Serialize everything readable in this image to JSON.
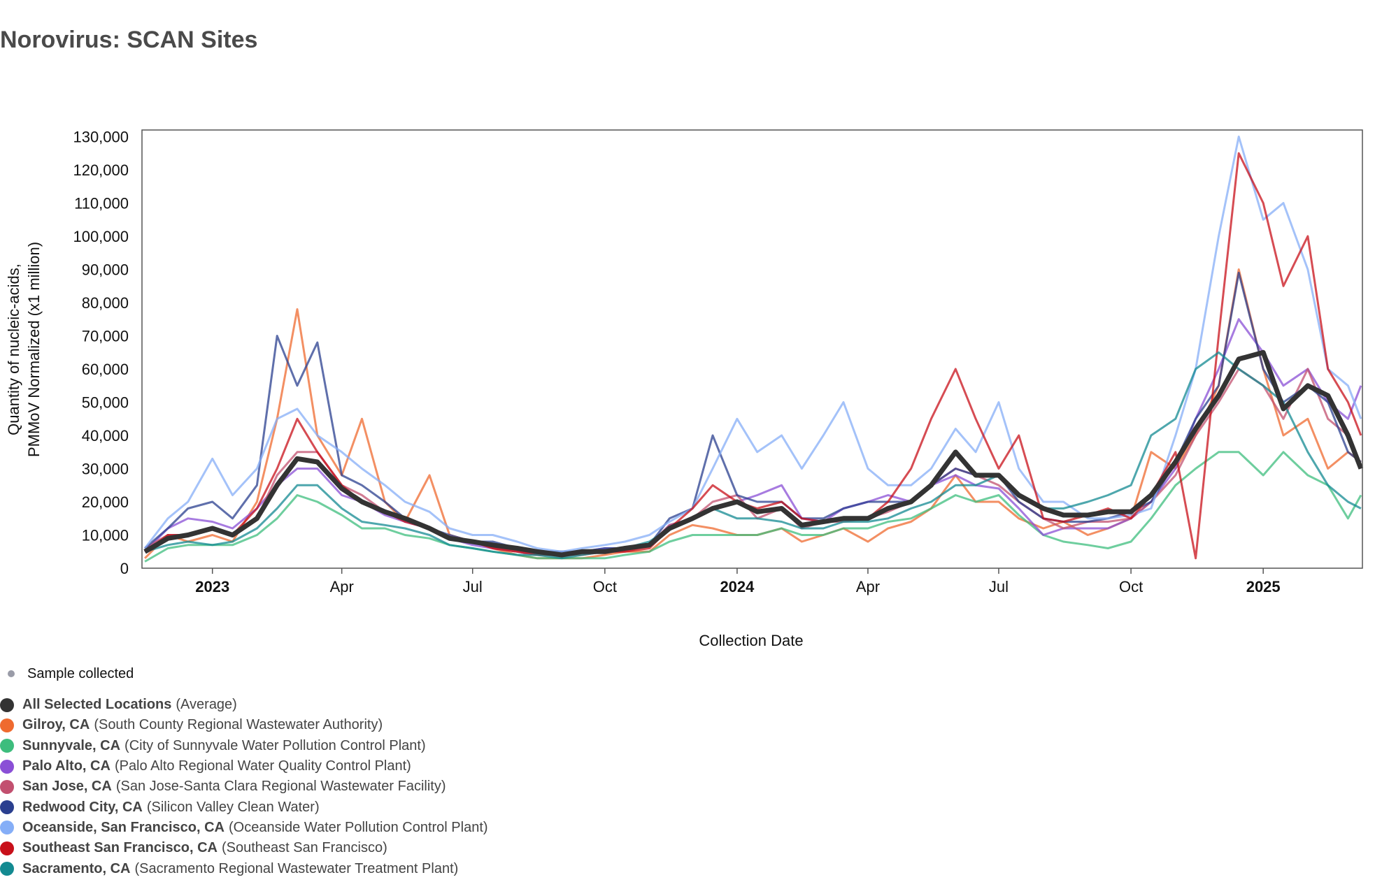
{
  "title": "Norovirus: SCAN Sites",
  "legend": {
    "sample_label": "Sample collected",
    "items": [
      {
        "name": "All Selected Locations",
        "detail": "(Average)",
        "color": "#333333"
      },
      {
        "name": "Gilroy, CA",
        "detail": "(South County Regional Wastewater Authority)",
        "color": "#ef6a2f"
      },
      {
        "name": "Sunnyvale, CA",
        "detail": "(City of Sunnyvale Water Pollution Control Plant)",
        "color": "#3dbd7d"
      },
      {
        "name": "Palo Alto, CA",
        "detail": "(Palo Alto Regional Water Quality Control Plant)",
        "color": "#8a4fd6"
      },
      {
        "name": "San Jose, CA",
        "detail": "(San Jose-Santa Clara Regional Wastewater Facility)",
        "color": "#c2506f"
      },
      {
        "name": "Redwood City, CA",
        "detail": "(Silicon Valley Clean Water)",
        "color": "#2a3f8f"
      },
      {
        "name": "Oceanside, San Francisco, CA",
        "detail": "(Oceanside Water Pollution Control Plant)",
        "color": "#85aef7"
      },
      {
        "name": "Southeast San Francisco, CA",
        "detail": "(Southeast San Francisco)",
        "color": "#c8101a"
      },
      {
        "name": "Sacramento, CA",
        "detail": "(Sacramento Regional Wastewater Treatment Plant)",
        "color": "#138a91"
      }
    ]
  },
  "chart_data": {
    "type": "line",
    "title": "Norovirus: SCAN Sites",
    "xlabel": "Collection Date",
    "ylabel": [
      "Quantity of nucleic-acids,",
      "PMMoV Normalized (x1 million)"
    ],
    "xlim": [
      "2022-11-13",
      "2025-03-11"
    ],
    "ylim": [
      0,
      132000
    ],
    "yticks": [
      0,
      10000,
      20000,
      30000,
      40000,
      50000,
      60000,
      70000,
      80000,
      90000,
      100000,
      110000,
      120000,
      130000
    ],
    "ytick_labels": [
      "0",
      "10,000",
      "20,000",
      "30,000",
      "40,000",
      "50,000",
      "60,000",
      "70,000",
      "80,000",
      "90,000",
      "100,000",
      "110,000",
      "120,000",
      "130,000"
    ],
    "xticks": [
      {
        "date": "2023-01-01",
        "label": "2023",
        "bold": true
      },
      {
        "date": "2023-04-01",
        "label": "Apr"
      },
      {
        "date": "2023-07-01",
        "label": "Jul"
      },
      {
        "date": "2023-10-01",
        "label": "Oct"
      },
      {
        "date": "2024-01-01",
        "label": "2024",
        "bold": true
      },
      {
        "date": "2024-04-01",
        "label": "Apr"
      },
      {
        "date": "2024-07-01",
        "label": "Jul"
      },
      {
        "date": "2024-10-01",
        "label": "Oct"
      },
      {
        "date": "2025-01-01",
        "label": "2025",
        "bold": true
      }
    ],
    "value_unit": "thousands",
    "x": [
      "2022-11-15",
      "2022-12-01",
      "2022-12-15",
      "2023-01-01",
      "2023-01-15",
      "2023-02-01",
      "2023-02-15",
      "2023-03-01",
      "2023-03-15",
      "2023-04-01",
      "2023-04-15",
      "2023-05-01",
      "2023-05-15",
      "2023-06-01",
      "2023-06-15",
      "2023-07-01",
      "2023-07-15",
      "2023-08-01",
      "2023-08-15",
      "2023-09-01",
      "2023-09-15",
      "2023-10-01",
      "2023-10-15",
      "2023-11-01",
      "2023-11-15",
      "2023-12-01",
      "2023-12-15",
      "2024-01-01",
      "2024-01-15",
      "2024-02-01",
      "2024-02-15",
      "2024-03-01",
      "2024-03-15",
      "2024-04-01",
      "2024-04-15",
      "2024-05-01",
      "2024-05-15",
      "2024-06-01",
      "2024-06-15",
      "2024-07-01",
      "2024-07-15",
      "2024-08-01",
      "2024-08-15",
      "2024-09-01",
      "2024-09-15",
      "2024-10-01",
      "2024-10-15",
      "2024-11-01",
      "2024-11-15",
      "2024-12-01",
      "2024-12-15",
      "2025-01-01",
      "2025-01-15",
      "2025-02-01",
      "2025-02-15",
      "2025-03-01",
      "2025-03-10"
    ],
    "series": [
      {
        "name": "Gilroy, CA",
        "values": [
          3,
          10,
          8,
          10,
          8,
          20,
          45,
          78,
          40,
          28,
          45,
          20,
          14,
          28,
          10,
          8,
          6,
          4,
          3,
          3,
          3,
          4,
          5,
          5,
          10,
          13,
          12,
          10,
          10,
          12,
          8,
          10,
          12,
          8,
          12,
          14,
          18,
          28,
          20,
          20,
          15,
          12,
          14,
          10,
          12,
          15,
          35,
          30,
          40,
          55,
          90,
          60,
          40,
          45,
          30,
          35,
          32
        ]
      },
      {
        "name": "Sunnyvale, CA",
        "values": [
          2,
          6,
          7,
          7,
          7,
          10,
          15,
          22,
          20,
          16,
          12,
          12,
          10,
          9,
          7,
          6,
          5,
          4,
          3,
          3,
          3,
          3,
          4,
          5,
          8,
          10,
          10,
          10,
          10,
          12,
          10,
          10,
          12,
          12,
          14,
          15,
          18,
          22,
          20,
          22,
          16,
          10,
          8,
          7,
          6,
          8,
          15,
          25,
          30,
          35,
          35,
          28,
          35,
          28,
          25,
          15,
          22
        ]
      },
      {
        "name": "Palo Alto, CA",
        "values": [
          5,
          12,
          15,
          14,
          12,
          18,
          25,
          30,
          30,
          22,
          20,
          16,
          14,
          12,
          9,
          7,
          6,
          5,
          4,
          4,
          5,
          6,
          6,
          7,
          13,
          15,
          18,
          20,
          22,
          25,
          15,
          14,
          18,
          20,
          22,
          20,
          25,
          28,
          25,
          24,
          18,
          10,
          12,
          12,
          12,
          15,
          20,
          30,
          45,
          60,
          75,
          65,
          55,
          60,
          50,
          45,
          55
        ]
      },
      {
        "name": "San Jose, CA",
        "values": [
          6,
          10,
          10,
          12,
          10,
          15,
          28,
          35,
          35,
          25,
          22,
          17,
          15,
          12,
          9,
          8,
          6,
          5,
          4,
          4,
          5,
          5,
          5,
          7,
          13,
          15,
          20,
          22,
          15,
          18,
          12,
          14,
          14,
          15,
          17,
          20,
          25,
          30,
          28,
          25,
          20,
          15,
          12,
          14,
          14,
          15,
          20,
          28,
          40,
          50,
          60,
          55,
          45,
          60,
          45,
          40,
          30
        ]
      },
      {
        "name": "Redwood City, CA",
        "values": [
          6,
          12,
          18,
          20,
          15,
          25,
          70,
          55,
          68,
          28,
          25,
          20,
          15,
          12,
          10,
          8,
          8,
          6,
          5,
          5,
          5,
          6,
          6,
          7,
          15,
          18,
          40,
          22,
          20,
          20,
          15,
          15,
          18,
          20,
          20,
          20,
          25,
          30,
          28,
          28,
          20,
          15,
          14,
          14,
          15,
          17,
          20,
          32,
          45,
          55,
          89,
          60,
          50,
          55,
          50,
          35,
          32
        ]
      },
      {
        "name": "Oceanside, San Francisco, CA",
        "values": [
          6,
          15,
          20,
          33,
          22,
          30,
          45,
          48,
          40,
          35,
          30,
          25,
          20,
          17,
          12,
          10,
          10,
          8,
          6,
          5,
          6,
          7,
          8,
          10,
          14,
          18,
          30,
          45,
          35,
          40,
          30,
          40,
          50,
          30,
          25,
          25,
          30,
          42,
          35,
          50,
          30,
          20,
          20,
          15,
          15,
          16,
          18,
          40,
          60,
          100,
          130,
          105,
          110,
          90,
          60,
          55,
          45
        ]
      },
      {
        "name": "Southeast San Francisco, CA",
        "values": [
          5,
          10,
          10,
          12,
          10,
          18,
          30,
          45,
          35,
          25,
          20,
          17,
          14,
          12,
          9,
          8,
          6,
          5,
          4,
          4,
          4,
          5,
          5,
          6,
          12,
          18,
          25,
          20,
          18,
          20,
          15,
          14,
          15,
          15,
          20,
          30,
          45,
          60,
          45,
          30,
          40,
          15,
          14,
          16,
          18,
          15,
          22,
          35,
          3,
          70,
          125,
          110,
          85,
          100,
          60,
          50,
          40
        ]
      },
      {
        "name": "Sacramento, CA",
        "values": [
          5,
          7,
          8,
          7,
          8,
          12,
          18,
          25,
          25,
          18,
          14,
          13,
          12,
          10,
          7,
          6,
          5,
          4,
          4,
          3,
          4,
          5,
          6,
          8,
          12,
          15,
          18,
          15,
          15,
          14,
          12,
          12,
          14,
          14,
          15,
          18,
          20,
          25,
          25,
          28,
          22,
          18,
          18,
          20,
          22,
          25,
          40,
          45,
          60,
          65,
          60,
          55,
          50,
          35,
          25,
          20,
          18
        ]
      },
      {
        "name": "All Selected Locations",
        "values": [
          5,
          9,
          10,
          12,
          10,
          15,
          25,
          33,
          32,
          24,
          20,
          17,
          15,
          12,
          9,
          8,
          7,
          6,
          5,
          4,
          5,
          5,
          6,
          7,
          12,
          15,
          18,
          20,
          17,
          18,
          13,
          14,
          15,
          15,
          18,
          20,
          25,
          35,
          28,
          28,
          22,
          18,
          16,
          16,
          17,
          17,
          22,
          32,
          42,
          52,
          63,
          65,
          48,
          55,
          52,
          40,
          30
        ]
      }
    ]
  }
}
